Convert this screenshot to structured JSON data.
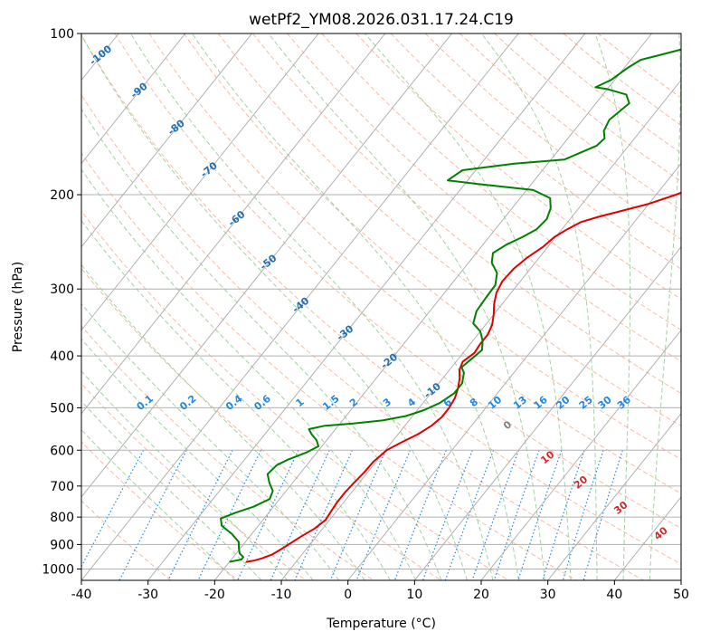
{
  "chart_data": {
    "type": "line",
    "title": "wetPf2_YM08.2026.031.17.24.C19",
    "xlabel": "Temperature (°C)",
    "ylabel": "Pressure (hPa)",
    "xlim": [
      -40,
      50
    ],
    "ylim": [
      1050,
      100
    ],
    "y_scale": "log",
    "x_ticks": [
      -40,
      -30,
      -20,
      -10,
      0,
      10,
      20,
      30,
      40,
      50
    ],
    "y_ticks": [
      100,
      200,
      300,
      400,
      500,
      600,
      700,
      800,
      900,
      1000
    ],
    "grid": true,
    "colors": {
      "temperature": "#e00000",
      "dewpoint": "#008000",
      "isotherm_labels": "#1f6fb4",
      "mixing_ratio": "#1e88e5",
      "dry_adiabat": "#f4a582",
      "moist_adiabat": "#8cc68c",
      "red_labels": "#d62728"
    },
    "series": [
      {
        "points": [
          [
            -17.5,
            970
          ],
          [
            -16.5,
            965
          ],
          [
            -15.5,
            955
          ],
          [
            -14.5,
            940
          ],
          [
            -13.8,
            920
          ],
          [
            -13.2,
            900
          ],
          [
            -12.3,
            870
          ],
          [
            -11.2,
            840
          ],
          [
            -10.6,
            810
          ],
          [
            -10.8,
            780
          ],
          [
            -11,
            750
          ],
          [
            -11,
            720
          ],
          [
            -10.8,
            690
          ],
          [
            -10.5,
            660
          ],
          [
            -10.4,
            630
          ],
          [
            -9.8,
            600
          ],
          [
            -8.5,
            580
          ],
          [
            -7,
            560
          ],
          [
            -6,
            540
          ],
          [
            -5.5,
            520
          ],
          [
            -5.5,
            500
          ],
          [
            -5.8,
            480
          ],
          [
            -6.5,
            460
          ],
          [
            -7.5,
            440
          ],
          [
            -8.5,
            425
          ],
          [
            -9,
            410
          ],
          [
            -8.3,
            395
          ],
          [
            -8.5,
            380
          ],
          [
            -8.5,
            365
          ],
          [
            -9,
            350
          ],
          [
            -10,
            335
          ],
          [
            -11.2,
            320
          ],
          [
            -12.2,
            305
          ],
          [
            -12.7,
            290
          ],
          [
            -12.5,
            275
          ],
          [
            -11.8,
            262
          ],
          [
            -10.7,
            250
          ],
          [
            -10.2,
            240
          ],
          [
            -9.2,
            232
          ],
          [
            -8,
            225
          ],
          [
            -6,
            220
          ],
          [
            -3,
            214
          ],
          [
            0,
            208
          ],
          [
            3,
            200
          ],
          [
            6,
            190
          ],
          [
            8.5,
            180
          ],
          [
            11,
            170
          ],
          [
            13.5,
            160
          ],
          [
            16.5,
            150
          ],
          [
            19.5,
            140
          ],
          [
            22.5,
            130
          ],
          [
            25,
            122
          ],
          [
            27,
            116
          ],
          [
            28,
            110
          ],
          [
            28.5,
            104
          ],
          [
            28.8,
            100
          ]
        ]
      },
      {
        "points": [
          [
            -20,
            970
          ],
          [
            -18.5,
            960
          ],
          [
            -18.5,
            950
          ],
          [
            -19.5,
            935
          ],
          [
            -20.2,
            915
          ],
          [
            -21,
            890
          ],
          [
            -23,
            860
          ],
          [
            -25.5,
            830
          ],
          [
            -26.5,
            805
          ],
          [
            -25,
            785
          ],
          [
            -23,
            765
          ],
          [
            -21.5,
            740
          ],
          [
            -22,
            715
          ],
          [
            -23.5,
            690
          ],
          [
            -24.8,
            665
          ],
          [
            -24.5,
            640
          ],
          [
            -23.5,
            625
          ],
          [
            -21.5,
            605
          ],
          [
            -20.5,
            590
          ],
          [
            -21.5,
            575
          ],
          [
            -23,
            560
          ],
          [
            -24,
            548
          ],
          [
            -22,
            540
          ],
          [
            -18,
            535
          ],
          [
            -14,
            528
          ],
          [
            -11,
            518
          ],
          [
            -9,
            505
          ],
          [
            -7.5,
            490
          ],
          [
            -6.5,
            470
          ],
          [
            -6.5,
            450
          ],
          [
            -7.5,
            430
          ],
          [
            -8.5,
            420
          ],
          [
            -8,
            405
          ],
          [
            -7.5,
            390
          ],
          [
            -8.5,
            375
          ],
          [
            -10,
            360
          ],
          [
            -12,
            348
          ],
          [
            -13,
            330
          ],
          [
            -13.2,
            310
          ],
          [
            -13.3,
            295
          ],
          [
            -14.5,
            280
          ],
          [
            -16.5,
            268
          ],
          [
            -17.5,
            257
          ],
          [
            -16.5,
            248
          ],
          [
            -15,
            240
          ],
          [
            -13.8,
            232
          ],
          [
            -13.5,
            222
          ],
          [
            -14.2,
            212
          ],
          [
            -15.5,
            203
          ],
          [
            -19,
            196
          ],
          [
            -28,
            191
          ],
          [
            -33,
            188
          ],
          [
            -32,
            180
          ],
          [
            -25,
            175
          ],
          [
            -18,
            172
          ],
          [
            -14.8,
            162
          ],
          [
            -14.5,
            157
          ],
          [
            -15.5,
            152
          ],
          [
            -16,
            145
          ],
          [
            -15.5,
            140
          ],
          [
            -15,
            135
          ],
          [
            -16.5,
            130
          ],
          [
            -20,
            127
          ],
          [
            -22,
            126
          ],
          [
            -20.5,
            122
          ],
          [
            -19.5,
            116
          ],
          [
            -18.5,
            112
          ],
          [
            -16.5,
            110
          ],
          [
            -11.5,
            105
          ],
          [
            -7,
            102
          ],
          [
            -6.3,
            100
          ]
        ]
      }
    ],
    "isotherm_labels": [
      "-100",
      "-90",
      "-80",
      "-70",
      "-60",
      "-50",
      "-40",
      "-30",
      "-20",
      "-10"
    ],
    "mixing_ratio_labels": [
      "0.1",
      "0.2",
      "0.4",
      "0.6",
      "1",
      "1.5",
      "2",
      "3",
      "4",
      "6",
      "8",
      "10",
      "13",
      "16",
      "20",
      "25",
      "30",
      "36"
    ],
    "red_temperature_labels": [
      "0",
      "10",
      "20",
      "30",
      "40"
    ]
  }
}
